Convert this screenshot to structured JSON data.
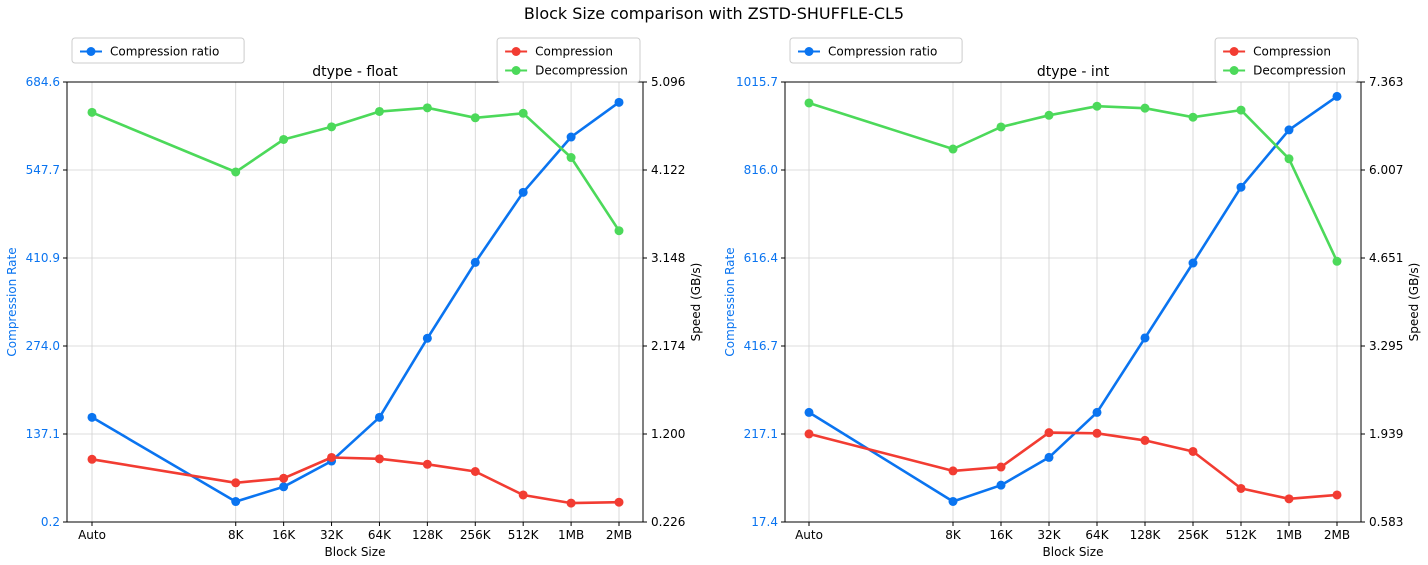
{
  "title": "Block Size comparison with ZSTD-SHUFFLE-CL5",
  "colors": {
    "ratio": "#0a74f0",
    "compression": "#f23c32",
    "decompression": "#4cd95a",
    "grid": "#d0d0d0"
  },
  "chart_data": [
    {
      "type": "line",
      "title": "dtype - float",
      "xlabel": "Block Size",
      "ylabel_left": "Compression Rate",
      "ylabel_right": "Speed (GB/s)",
      "categories": [
        "Auto",
        "8K",
        "16K",
        "32K",
        "64K",
        "128K",
        "256K",
        "512K",
        "1MB",
        "2MB"
      ],
      "x_positions": [
        0,
        3,
        4,
        5,
        6,
        7,
        8,
        9,
        10,
        11
      ],
      "left_ylim": [
        0.2,
        684.6
      ],
      "right_ylim": [
        0.226,
        5.096
      ],
      "left_ticks": [
        "0.2",
        "137.1",
        "274.0",
        "410.9",
        "547.7",
        "684.6"
      ],
      "right_ticks": [
        "0.226",
        "1.200",
        "2.174",
        "3.148",
        "4.122",
        "5.096"
      ],
      "legend_left": [
        "Compression ratio"
      ],
      "legend_right": [
        "Compression",
        "Decompression"
      ],
      "series": [
        {
          "name": "Compression ratio",
          "axis": "left",
          "values": [
            163,
            32,
            55,
            95,
            163,
            286,
            404,
            513,
            599,
            653
          ]
        },
        {
          "name": "Compression",
          "axis": "right",
          "values": [
            0.92,
            0.66,
            0.71,
            0.94,
            0.925,
            0.865,
            0.785,
            0.525,
            0.435,
            0.445
          ]
        },
        {
          "name": "Decompression",
          "axis": "right",
          "values": [
            4.76,
            4.1,
            4.46,
            4.6,
            4.77,
            4.81,
            4.7,
            4.75,
            4.26,
            3.45
          ]
        }
      ]
    },
    {
      "type": "line",
      "title": "dtype - int",
      "xlabel": "Block Size",
      "ylabel_left": "Compression Rate",
      "ylabel_right": "Speed (GB/s)",
      "categories": [
        "Auto",
        "8K",
        "16K",
        "32K",
        "64K",
        "128K",
        "256K",
        "512K",
        "1MB",
        "2MB"
      ],
      "x_positions": [
        0,
        3,
        4,
        5,
        6,
        7,
        8,
        9,
        10,
        11
      ],
      "left_ylim": [
        17.4,
        1015.7
      ],
      "right_ylim": [
        0.583,
        7.363
      ],
      "left_ticks": [
        "17.4",
        "217.1",
        "416.7",
        "616.4",
        "816.0",
        "1015.7"
      ],
      "right_ticks": [
        "0.583",
        "1.939",
        "3.295",
        "4.651",
        "6.007",
        "7.363"
      ],
      "legend_left": [
        "Compression ratio"
      ],
      "legend_right": [
        "Compression",
        "Decompression"
      ],
      "series": [
        {
          "name": "Compression ratio",
          "axis": "left",
          "values": [
            266,
            64,
            101,
            164,
            266,
            435,
            605,
            777,
            907,
            983
          ]
        },
        {
          "name": "Compression",
          "axis": "right",
          "values": [
            1.94,
            1.37,
            1.43,
            1.96,
            1.95,
            1.84,
            1.67,
            1.1,
            0.94,
            1.0
          ]
        },
        {
          "name": "Decompression",
          "axis": "right",
          "values": [
            7.04,
            6.33,
            6.67,
            6.85,
            6.99,
            6.96,
            6.82,
            6.93,
            6.18,
            4.6
          ]
        }
      ]
    }
  ]
}
